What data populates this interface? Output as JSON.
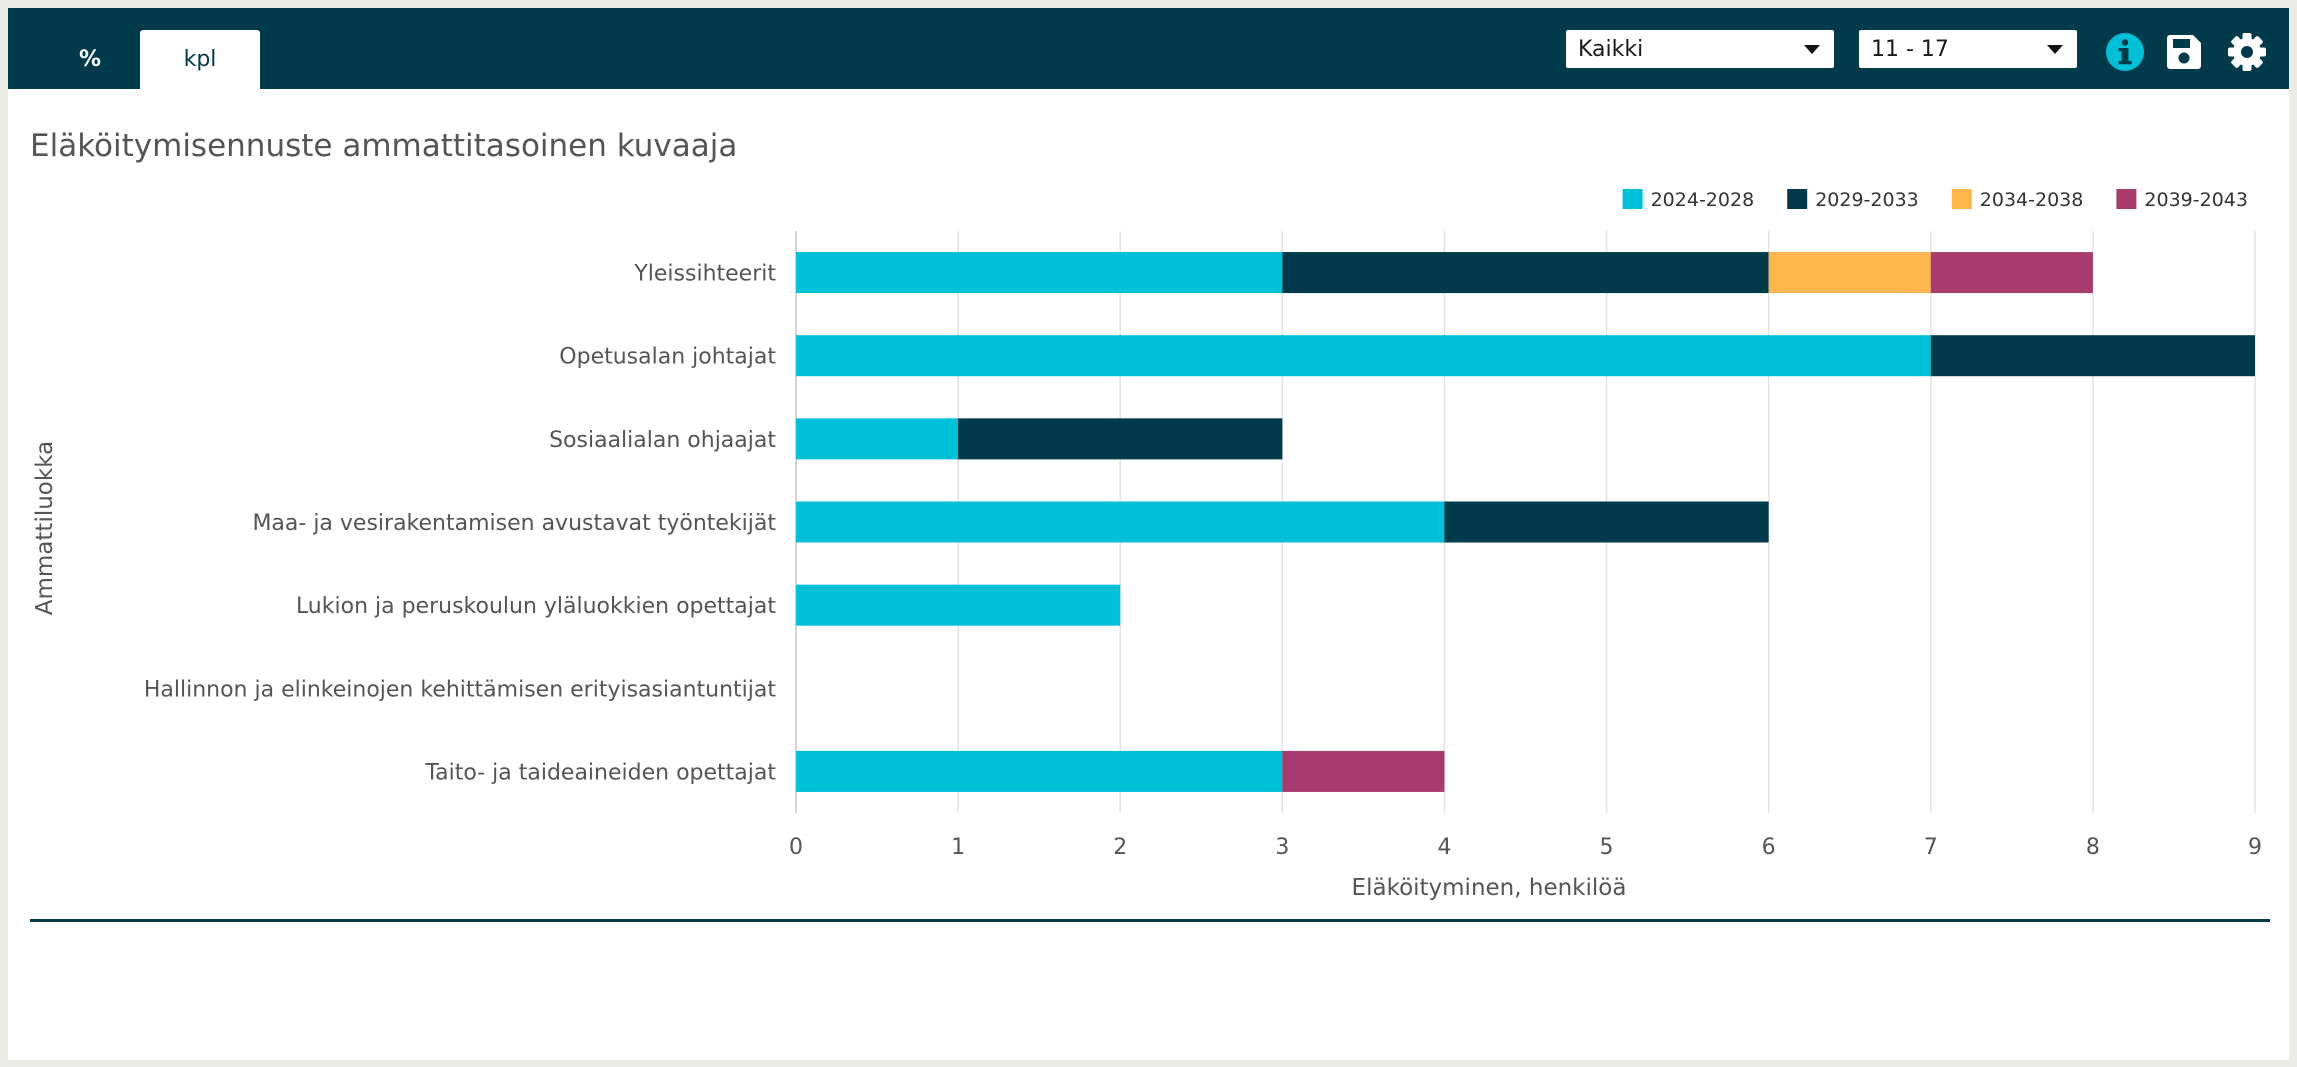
{
  "toolbar": {
    "tabs": [
      {
        "label": "%"
      },
      {
        "label": "kpl"
      }
    ],
    "group_select": {
      "value": "Kaikki"
    },
    "range_select": {
      "value": "11 - 17"
    },
    "icons": [
      "info-icon",
      "save-icon",
      "gear-icon"
    ]
  },
  "colors": {
    "header": "#013a4a",
    "series": [
      "#00c0d8",
      "#013a4a",
      "#fdb54e",
      "#a73b6e"
    ]
  },
  "chart_data": {
    "type": "bar",
    "orientation": "horizontal",
    "stacked": true,
    "title": "Eläköitymisennuste ammattitasoinen kuvaaja",
    "xlabel": "Eläköityminen, henkilöä",
    "ylabel": "Ammattiluokka",
    "xlim": [
      0,
      9
    ],
    "xticks": [
      0,
      1,
      2,
      3,
      4,
      5,
      6,
      7,
      8,
      9
    ],
    "grid": true,
    "legend_position": "top-right",
    "categories": [
      "Yleissihteerit",
      "Opetusalan johtajat",
      "Sosiaalialan ohjaajat",
      "Maa- ja vesirakentamisen avustavat työntekijät",
      "Lukion ja peruskoulun yläluokkien opettajat",
      "Hallinnon ja elinkeinojen kehittämisen erityisasiantuntijat",
      "Taito- ja taideaineiden opettajat"
    ],
    "series": [
      {
        "name": "2024-2028",
        "color": "#00c0d8",
        "values": [
          3,
          7,
          1,
          4,
          2,
          0,
          3
        ]
      },
      {
        "name": "2029-2033",
        "color": "#013a4a",
        "values": [
          3,
          2,
          2,
          2,
          0,
          0,
          0
        ]
      },
      {
        "name": "2034-2038",
        "color": "#fdb54e",
        "values": [
          1,
          0,
          0,
          0,
          0,
          0,
          0
        ]
      },
      {
        "name": "2039-2043",
        "color": "#a73b6e",
        "values": [
          1,
          0,
          0,
          0,
          0,
          0,
          1
        ]
      }
    ]
  }
}
